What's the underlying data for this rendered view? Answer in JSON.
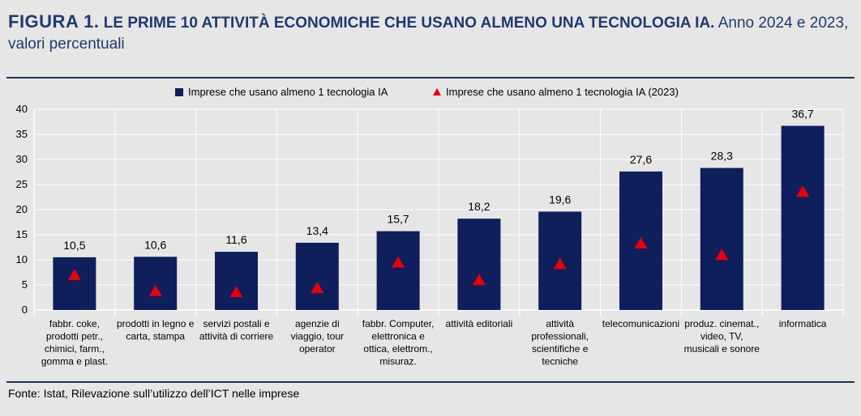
{
  "title": {
    "figure_label": "FIGURA 1.",
    "heading": "LE PRIME 10 ATTIVITÀ ECONOMICHE CHE USANO ALMENO UNA TECNOLOGIA IA.",
    "subtitle": "Anno 2024 e 2023, valori percentuali"
  },
  "source": "Fonte: Istat, Rilevazione sull’utilizzo dell’ICT nelle imprese",
  "colors": {
    "bar": "#0f1f5c",
    "marker": "#e8000b",
    "grid": "#ffffff",
    "title": "#1f3a6e"
  },
  "chart_data": {
    "type": "bar",
    "title": "LE PRIME 10 ATTIVITÀ ECONOMICHE CHE USANO ALMENO UNA TECNOLOGIA IA.",
    "ylim": [
      0,
      40
    ],
    "yticks": [
      "0",
      "5",
      "10",
      "15",
      "20",
      "25",
      "30",
      "35",
      "40"
    ],
    "legend_position": "top",
    "categories": [
      [
        "fabbr. coke,",
        "prodotti petr.,",
        "chimici, farm.,",
        "gomma e plast."
      ],
      [
        "prodotti in legno e",
        "carta, stampa"
      ],
      [
        "servizi postali e",
        "attività di corriere"
      ],
      [
        "agenzie di",
        "viaggio, tour",
        "operator"
      ],
      [
        "fabbr. Computer,",
        "elettronica e",
        "ottica, elettrom.,",
        "misuraz."
      ],
      [
        "attività editoriali"
      ],
      [
        "attività",
        "professionali,",
        "scientifiche e",
        "tecniche"
      ],
      [
        "telecomunicazioni"
      ],
      [
        "produz. cinemat.,",
        "video, TV,",
        "musicali e sonore"
      ],
      [
        "informatica"
      ]
    ],
    "series": [
      {
        "name": "Imprese che usano almeno 1 tecnologia IA",
        "kind": "bar",
        "values": [
          10.5,
          10.6,
          11.6,
          13.4,
          15.7,
          18.2,
          19.6,
          27.6,
          28.3,
          36.7
        ],
        "labels": [
          "10,5",
          "10,6",
          "11,6",
          "13,4",
          "15,7",
          "18,2",
          "19,6",
          "27,6",
          "28,3",
          "36,7"
        ]
      },
      {
        "name": "Imprese che usano almeno 1 tecnologia IA (2023)",
        "kind": "triangle-marker",
        "values": [
          7.0,
          3.8,
          3.6,
          4.4,
          9.5,
          6.0,
          9.2,
          13.3,
          11.0,
          23.6
        ]
      }
    ]
  }
}
